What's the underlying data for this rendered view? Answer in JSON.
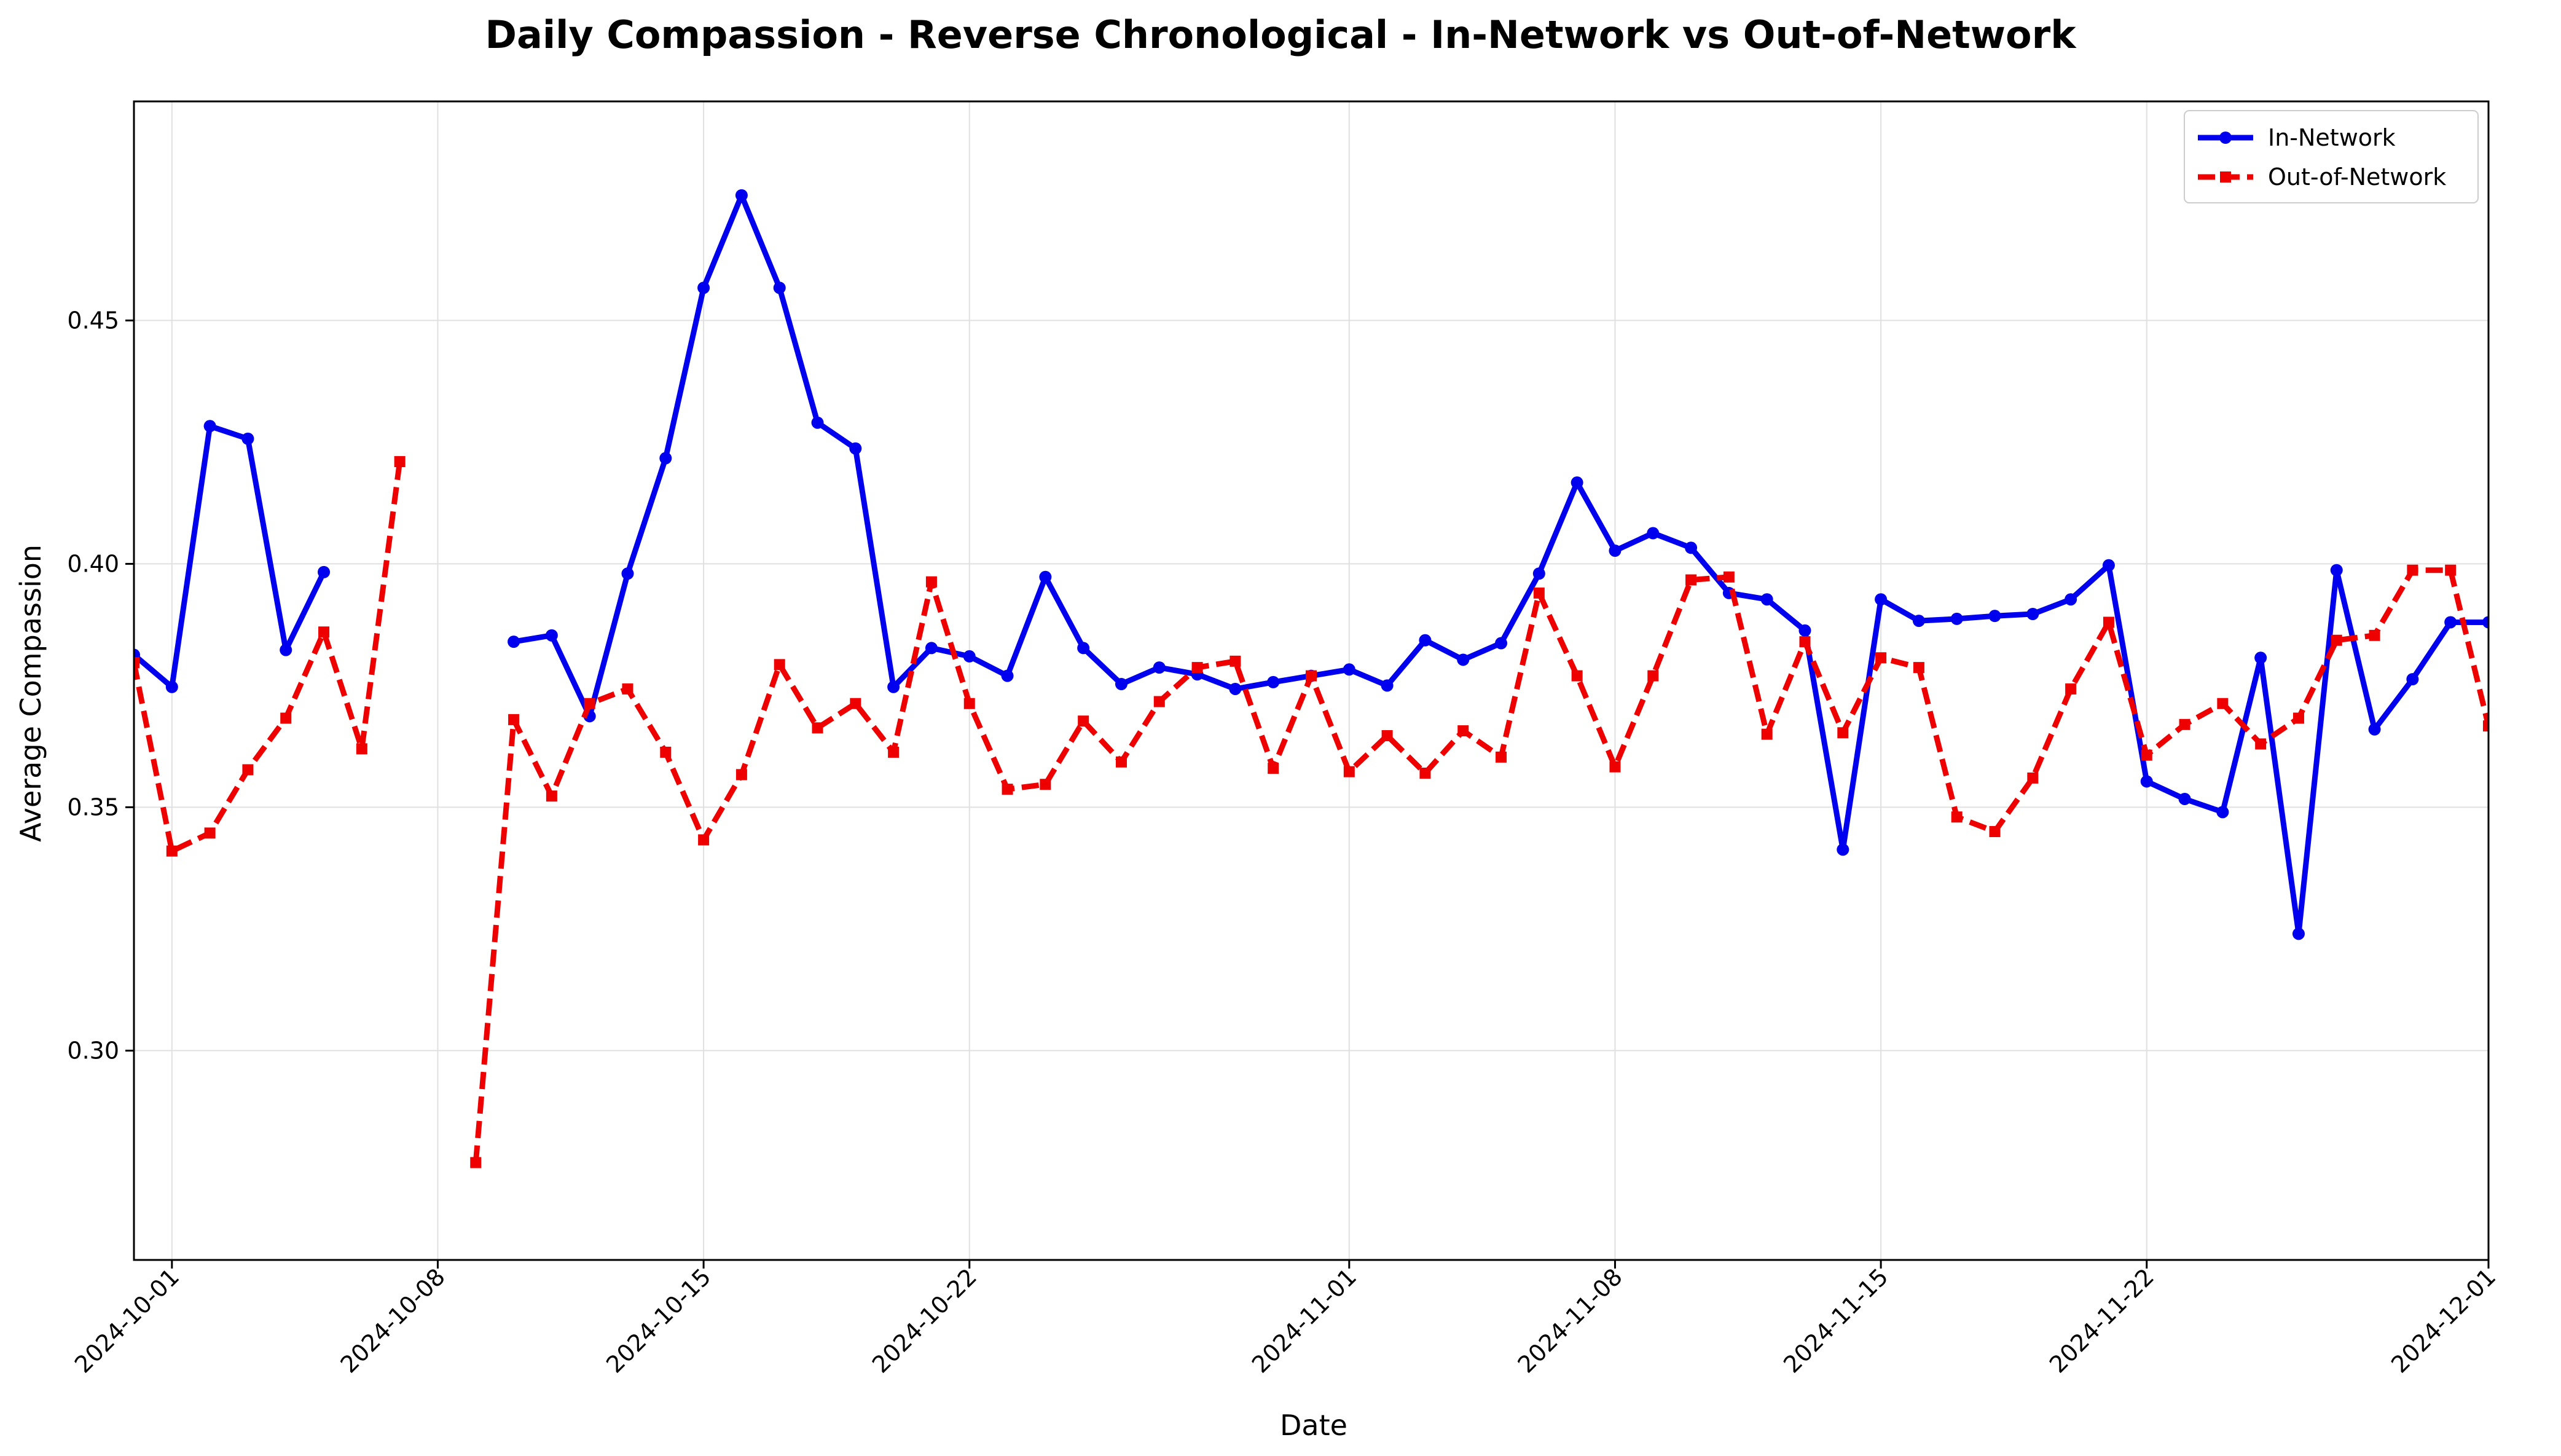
{
  "chart_data": {
    "type": "line",
    "title": "Daily Compassion - Reverse Chronological - In-Network vs Out-of-Network",
    "xlabel": "Date",
    "ylabel": "Average Compassion",
    "xlim": [
      "2024-09-30",
      "2024-12-01"
    ],
    "ylim": [
      0.257,
      0.495
    ],
    "grid": true,
    "legend_position": "top-right",
    "x_ticks": [
      "2024-10-01",
      "2024-10-08",
      "2024-10-15",
      "2024-10-22",
      "2024-11-01",
      "2024-11-08",
      "2024-11-15",
      "2024-11-22",
      "2024-12-01"
    ],
    "y_ticks": [
      "0.30",
      "0.35",
      "0.40",
      "0.45"
    ],
    "colors": {
      "in_network": "#0000ee",
      "out_of_network": "#ee0000",
      "grid": "#e0e0e0"
    },
    "series": [
      {
        "name": "In-Network",
        "style": "solid-circle",
        "points": [
          [
            "2024-09-30",
            0.3813
          ],
          [
            "2024-10-01",
            0.3747
          ],
          [
            "2024-10-02",
            0.4283
          ],
          [
            "2024-10-03",
            0.4257
          ],
          [
            "2024-10-04",
            0.3823
          ],
          [
            "2024-10-05",
            0.3983
          ],
          [
            "2024-10-06",
            null
          ],
          [
            "2024-10-07",
            null
          ],
          [
            "2024-10-08",
            null
          ],
          [
            "2024-10-09",
            null
          ],
          [
            "2024-10-10",
            0.384
          ],
          [
            "2024-10-11",
            0.3853
          ],
          [
            "2024-10-12",
            0.3687
          ],
          [
            "2024-10-13",
            0.398
          ],
          [
            "2024-10-14",
            0.4217
          ],
          [
            "2024-10-15",
            0.4567
          ],
          [
            "2024-10-16",
            0.4757
          ],
          [
            "2024-10-17",
            0.4567
          ],
          [
            "2024-10-18",
            0.429
          ],
          [
            "2024-10-19",
            0.4237
          ],
          [
            "2024-10-20",
            0.3747
          ],
          [
            "2024-10-21",
            0.3827
          ],
          [
            "2024-10-22",
            0.381
          ],
          [
            "2024-10-23",
            0.377
          ],
          [
            "2024-10-24",
            0.3973
          ],
          [
            "2024-10-25",
            0.3827
          ],
          [
            "2024-10-26",
            0.3753
          ],
          [
            "2024-10-27",
            0.3787
          ],
          [
            "2024-10-28",
            0.3773
          ],
          [
            "2024-10-29",
            0.3743
          ],
          [
            "2024-10-30",
            0.3757
          ],
          [
            "2024-10-31",
            0.377
          ],
          [
            "2024-11-01",
            0.3783
          ],
          [
            "2024-11-02",
            0.375
          ],
          [
            "2024-11-03",
            0.3843
          ],
          [
            "2024-11-04",
            0.3803
          ],
          [
            "2024-11-05",
            0.3837
          ],
          [
            "2024-11-06",
            0.398
          ],
          [
            "2024-11-07",
            0.4167
          ],
          [
            "2024-11-08",
            0.4027
          ],
          [
            "2024-11-09",
            0.4063
          ],
          [
            "2024-11-10",
            0.4033
          ],
          [
            "2024-11-11",
            0.394
          ],
          [
            "2024-11-12",
            0.3927
          ],
          [
            "2024-11-13",
            0.3863
          ],
          [
            "2024-11-14",
            0.3413
          ],
          [
            "2024-11-15",
            0.3927
          ],
          [
            "2024-11-16",
            0.3883
          ],
          [
            "2024-11-17",
            0.3887
          ],
          [
            "2024-11-18",
            0.3893
          ],
          [
            "2024-11-19",
            0.3897
          ],
          [
            "2024-11-20",
            0.3927
          ],
          [
            "2024-11-21",
            0.3997
          ],
          [
            "2024-11-22",
            0.3553
          ],
          [
            "2024-11-23",
            0.3517
          ],
          [
            "2024-11-24",
            0.349
          ],
          [
            "2024-11-25",
            0.3807
          ],
          [
            "2024-11-26",
            0.324
          ],
          [
            "2024-11-27",
            0.3987
          ],
          [
            "2024-11-28",
            0.366
          ],
          [
            "2024-11-29",
            0.3763
          ],
          [
            "2024-11-30",
            0.388
          ],
          [
            "2024-12-01",
            0.388
          ]
        ]
      },
      {
        "name": "Out-of-Network",
        "style": "dashed-square",
        "points": [
          [
            "2024-09-30",
            0.3797
          ],
          [
            "2024-10-01",
            0.341
          ],
          [
            "2024-10-02",
            0.3447
          ],
          [
            "2024-10-03",
            0.3577
          ],
          [
            "2024-10-04",
            0.3683
          ],
          [
            "2024-10-05",
            0.386
          ],
          [
            "2024-10-06",
            0.362
          ],
          [
            "2024-10-07",
            0.421
          ],
          [
            "2024-10-08",
            null
          ],
          [
            "2024-10-09",
            0.277
          ],
          [
            "2024-10-10",
            0.368
          ],
          [
            "2024-10-11",
            0.3523
          ],
          [
            "2024-10-12",
            0.3713
          ],
          [
            "2024-10-13",
            0.3743
          ],
          [
            "2024-10-14",
            0.3613
          ],
          [
            "2024-10-15",
            0.3433
          ],
          [
            "2024-10-16",
            0.3567
          ],
          [
            "2024-10-17",
            0.3793
          ],
          [
            "2024-10-18",
            0.3663
          ],
          [
            "2024-10-19",
            0.3713
          ],
          [
            "2024-10-20",
            0.3613
          ],
          [
            "2024-10-21",
            0.3963
          ],
          [
            "2024-10-22",
            0.3713
          ],
          [
            "2024-10-23",
            0.3537
          ],
          [
            "2024-10-24",
            0.3547
          ],
          [
            "2024-10-25",
            0.3677
          ],
          [
            "2024-10-26",
            0.3593
          ],
          [
            "2024-10-27",
            0.3717
          ],
          [
            "2024-10-28",
            0.3787
          ],
          [
            "2024-10-29",
            0.38
          ],
          [
            "2024-10-30",
            0.358
          ],
          [
            "2024-10-31",
            0.377
          ],
          [
            "2024-11-01",
            0.3573
          ],
          [
            "2024-11-02",
            0.3647
          ],
          [
            "2024-11-03",
            0.357
          ],
          [
            "2024-11-04",
            0.3657
          ],
          [
            "2024-11-05",
            0.3603
          ],
          [
            "2024-11-06",
            0.394
          ],
          [
            "2024-11-07",
            0.377
          ],
          [
            "2024-11-08",
            0.3583
          ],
          [
            "2024-11-09",
            0.377
          ],
          [
            "2024-11-10",
            0.3967
          ],
          [
            "2024-11-11",
            0.3973
          ],
          [
            "2024-11-12",
            0.365
          ],
          [
            "2024-11-13",
            0.384
          ],
          [
            "2024-11-14",
            0.3653
          ],
          [
            "2024-11-15",
            0.3807
          ],
          [
            "2024-11-16",
            0.3787
          ],
          [
            "2024-11-17",
            0.348
          ],
          [
            "2024-11-18",
            0.345
          ],
          [
            "2024-11-19",
            0.356
          ],
          [
            "2024-11-20",
            0.3743
          ],
          [
            "2024-11-21",
            0.388
          ],
          [
            "2024-11-22",
            0.3607
          ],
          [
            "2024-11-23",
            0.367
          ],
          [
            "2024-11-24",
            0.3713
          ],
          [
            "2024-11-25",
            0.363
          ],
          [
            "2024-11-26",
            0.3683
          ],
          [
            "2024-11-27",
            0.3843
          ],
          [
            "2024-11-28",
            0.3853
          ],
          [
            "2024-11-29",
            0.3987
          ],
          [
            "2024-11-30",
            0.3987
          ],
          [
            "2024-12-01",
            0.3667
          ]
        ]
      }
    ]
  }
}
